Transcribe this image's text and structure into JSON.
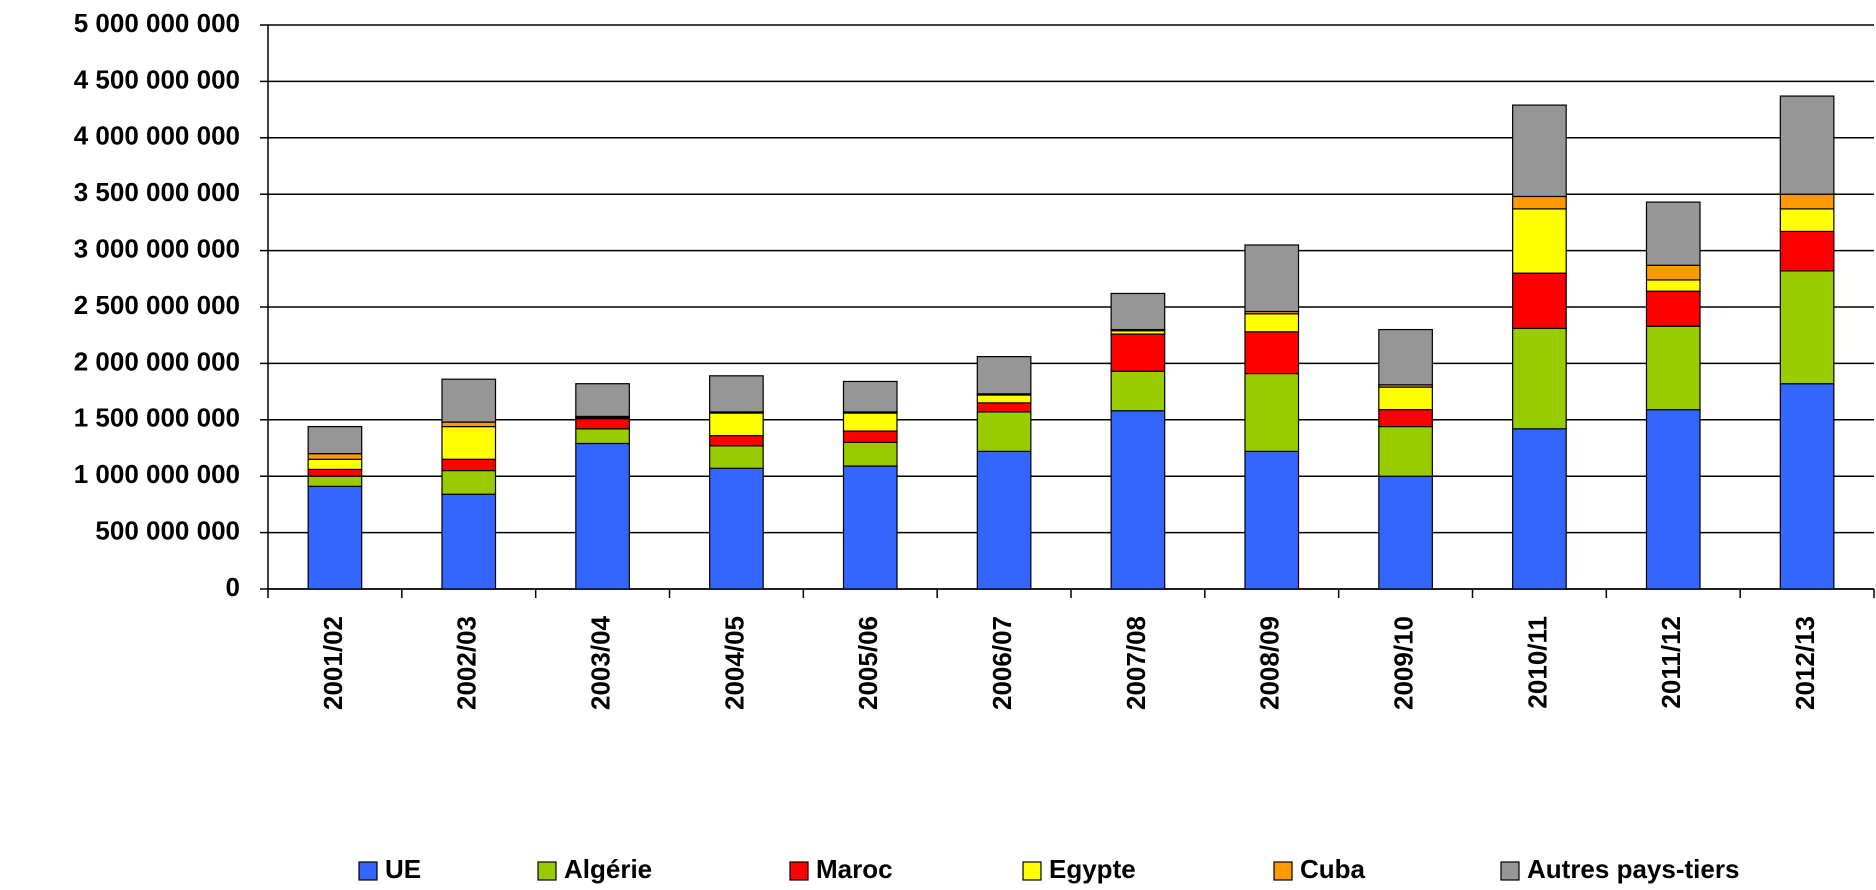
{
  "chart_data": {
    "type": "stacked-bar",
    "categories": [
      "2001/02",
      "2002/03",
      "2003/04",
      "2004/05",
      "2005/06",
      "2006/07",
      "2007/08",
      "2008/09",
      "2009/10",
      "2010/11",
      "2011/12",
      "2012/13"
    ],
    "series": [
      {
        "name": "UE",
        "color": "#3366ff",
        "values": [
          910000000,
          840000000,
          1290000000,
          1070000000,
          1090000000,
          1220000000,
          1580000000,
          1220000000,
          1000000000,
          1420000000,
          1590000000,
          1820000000
        ]
      },
      {
        "name": "Algérie",
        "color": "#99cc00",
        "values": [
          90000000,
          210000000,
          130000000,
          200000000,
          210000000,
          350000000,
          350000000,
          690000000,
          440000000,
          890000000,
          740000000,
          1000000000
        ]
      },
      {
        "name": "Maroc",
        "color": "#ff0000",
        "values": [
          60000000,
          100000000,
          90000000,
          90000000,
          100000000,
          80000000,
          330000000,
          370000000,
          150000000,
          490000000,
          310000000,
          350000000
        ]
      },
      {
        "name": "Egypte",
        "color": "#ffff00",
        "values": [
          90000000,
          290000000,
          10000000,
          200000000,
          160000000,
          70000000,
          30000000,
          160000000,
          200000000,
          570000000,
          100000000,
          200000000
        ]
      },
      {
        "name": "Cuba",
        "color": "#ff9900",
        "values": [
          50000000,
          40000000,
          10000000,
          10000000,
          10000000,
          10000000,
          10000000,
          20000000,
          20000000,
          110000000,
          130000000,
          130000000
        ]
      },
      {
        "name": "Autres pays-tiers",
        "color": "#969696",
        "values": [
          240000000,
          380000000,
          290000000,
          320000000,
          270000000,
          330000000,
          320000000,
          590000000,
          490000000,
          810000000,
          560000000,
          870000000
        ]
      }
    ],
    "ylim": [
      0,
      5000000000
    ],
    "yticks": [
      {
        "value": 0,
        "label": "0"
      },
      {
        "value": 500000000,
        "label": "500 000 000"
      },
      {
        "value": 1000000000,
        "label": "1 000 000 000"
      },
      {
        "value": 1500000000,
        "label": "1 500 000 000"
      },
      {
        "value": 2000000000,
        "label": "2 000 000 000"
      },
      {
        "value": 2500000000,
        "label": "2 500 000 000"
      },
      {
        "value": 3000000000,
        "label": "3 000 000 000"
      },
      {
        "value": 3500000000,
        "label": "3 500 000 000"
      },
      {
        "value": 4000000000,
        "label": "4 000 000 000"
      },
      {
        "value": 4500000000,
        "label": "4 500 000 000"
      },
      {
        "value": 5000000000,
        "label": "5 000 000 000"
      }
    ],
    "grid": true
  }
}
